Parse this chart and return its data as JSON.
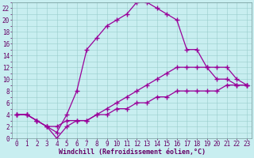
{
  "title": "",
  "xlabel": "Windchill (Refroidissement éolien,°C)",
  "bg_color": "#c8eef0",
  "grid_color": "#99cccc",
  "line_color": "#990099",
  "xlim": [
    -0.5,
    23.5
  ],
  "ylim": [
    0,
    23
  ],
  "xticks": [
    0,
    1,
    2,
    3,
    4,
    5,
    6,
    7,
    8,
    9,
    10,
    11,
    12,
    13,
    14,
    15,
    16,
    17,
    18,
    19,
    20,
    21,
    22,
    23
  ],
  "yticks": [
    0,
    2,
    4,
    6,
    8,
    10,
    12,
    14,
    16,
    18,
    20,
    22
  ],
  "curve1_x": [
    0,
    1,
    2,
    3,
    4,
    5,
    6,
    7,
    8,
    9,
    10,
    11,
    12,
    13,
    14,
    15,
    16,
    17,
    18,
    19,
    20,
    21,
    22,
    23
  ],
  "curve1_y": [
    4,
    4,
    3,
    2,
    1,
    4,
    8,
    15,
    17,
    19,
    20,
    21,
    23,
    23,
    22,
    21,
    20,
    15,
    15,
    12,
    10,
    10,
    9,
    9
  ],
  "curve2_x": [
    0,
    1,
    2,
    3,
    4,
    5,
    6,
    7,
    8,
    9,
    10,
    11,
    12,
    13,
    14,
    15,
    16,
    17,
    18,
    19,
    20,
    21,
    22,
    23
  ],
  "curve2_y": [
    4,
    4,
    3,
    2,
    0,
    2,
    3,
    3,
    4,
    5,
    6,
    7,
    8,
    9,
    10,
    11,
    12,
    12,
    12,
    12,
    12,
    12,
    10,
    9
  ],
  "curve3_x": [
    0,
    1,
    2,
    3,
    4,
    5,
    6,
    7,
    8,
    9,
    10,
    11,
    12,
    13,
    14,
    15,
    16,
    17,
    18,
    19,
    20,
    21,
    22,
    23
  ],
  "curve3_y": [
    4,
    4,
    3,
    2,
    2,
    3,
    3,
    3,
    4,
    4,
    5,
    5,
    6,
    6,
    7,
    7,
    8,
    8,
    8,
    8,
    8,
    9,
    9,
    9
  ],
  "marker": "+",
  "markersize": 4,
  "linewidth": 0.9,
  "xlabel_fontsize": 6,
  "tick_fontsize": 5.5
}
